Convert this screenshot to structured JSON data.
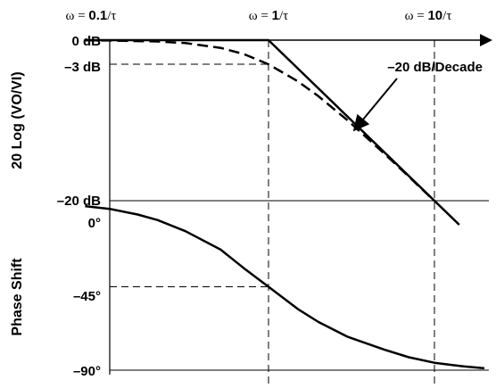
{
  "chart_data": [
    {
      "type": "line",
      "panel": "magnitude",
      "xscale": "log",
      "xlim": [
        0.07,
        20
      ],
      "ylim": [
        -23,
        0
      ],
      "ylabel": "20 Log (VO/VI)",
      "x_ticks": [
        {
          "prefix": "ω = ",
          "value": "0.1",
          "suffix": "/τ"
        },
        {
          "prefix": "ω = ",
          "value": "1",
          "suffix": "/τ"
        },
        {
          "prefix": "ω = ",
          "value": "10",
          "suffix": "/τ"
        }
      ],
      "y_ticks": [
        {
          "label": "0 dB",
          "value": 0
        },
        {
          "label": "–3 dB",
          "value": -3
        },
        {
          "label": "–20 dB",
          "value": -20
        }
      ],
      "annotation": "–20 dB/Decade",
      "series": [
        {
          "style": "solid",
          "kind": "asymptote",
          "x": [
            0.07,
            1,
            14.1
          ],
          "y": [
            0,
            0,
            -23
          ]
        },
        {
          "style": "dashed",
          "kind": "actual",
          "x": [
            0.07,
            0.1,
            0.2,
            0.3,
            0.5,
            0.7,
            1,
            1.5,
            2,
            3,
            5,
            7,
            10
          ],
          "y": [
            -0.02,
            -0.04,
            -0.17,
            -0.37,
            -0.97,
            -1.73,
            -3.01,
            -5.12,
            -6.99,
            -10.0,
            -14.15,
            -16.99,
            -20.04
          ]
        }
      ],
      "guides": {
        "x": [
          1,
          10
        ],
        "y": [
          -3
        ]
      }
    },
    {
      "type": "line",
      "panel": "phase",
      "xscale": "log",
      "xlim": [
        0.07,
        20
      ],
      "ylim": [
        -90,
        0
      ],
      "ylabel": "Phase Shift",
      "y_ticks": [
        {
          "label": "0°",
          "value": 0
        },
        {
          "label": "–45°",
          "value": -45
        },
        {
          "label": "–90°",
          "value": -90
        }
      ],
      "series": [
        {
          "style": "solid",
          "x": [
            0.07,
            0.1,
            0.15,
            0.2,
            0.3,
            0.5,
            0.7,
            1,
            1.5,
            2,
            3,
            5,
            7,
            10,
            15,
            20
          ],
          "y": [
            -1.5,
            -3,
            -6,
            -9,
            -15,
            -25,
            -35,
            -45,
            -57,
            -64,
            -72,
            -79,
            -83,
            -86,
            -88,
            -89
          ]
        }
      ],
      "guides": {
        "x": [
          1,
          10
        ],
        "y": [
          -45
        ]
      }
    }
  ]
}
